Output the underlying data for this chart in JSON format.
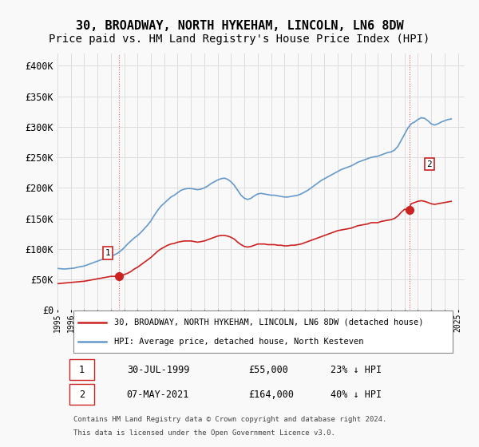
{
  "title": "30, BROADWAY, NORTH HYKEHAM, LINCOLN, LN6 8DW",
  "subtitle": "Price paid vs. HM Land Registry's House Price Index (HPI)",
  "title_fontsize": 11,
  "subtitle_fontsize": 10,
  "ylabel_ticks": [
    "£0",
    "£50K",
    "£100K",
    "£150K",
    "£200K",
    "£250K",
    "£300K",
    "£350K",
    "£400K"
  ],
  "ytick_values": [
    0,
    50000,
    100000,
    150000,
    200000,
    250000,
    300000,
    350000,
    400000
  ],
  "ylim": [
    0,
    420000
  ],
  "xlim_start": 1995.0,
  "xlim_end": 2025.5,
  "background_color": "#f9f9f9",
  "plot_bg_color": "#f9f9f9",
  "grid_color": "#dddddd",
  "hpi_color": "#6699cc",
  "price_color": "#cc2222",
  "marker1_year": 1999.58,
  "marker1_price": 55000,
  "marker2_year": 2021.35,
  "marker2_price": 164000,
  "legend_label1": "30, BROADWAY, NORTH HYKEHAM, LINCOLN, LN6 8DW (detached house)",
  "legend_label2": "HPI: Average price, detached house, North Kesteven",
  "annotation1_label": "1",
  "annotation2_label": "2",
  "footer1": "Contains HM Land Registry data © Crown copyright and database right 2024.",
  "footer2": "This data is licensed under the Open Government Licence v3.0.",
  "table_row1": [
    "1",
    "30-JUL-1999",
    "£55,000",
    "23% ↓ HPI"
  ],
  "table_row2": [
    "2",
    "07-MAY-2021",
    "£164,000",
    "40% ↓ HPI"
  ],
  "hpi_data_x": [
    1995.0,
    1995.25,
    1995.5,
    1995.75,
    1996.0,
    1996.25,
    1996.5,
    1996.75,
    1997.0,
    1997.25,
    1997.5,
    1997.75,
    1998.0,
    1998.25,
    1998.5,
    1998.75,
    1999.0,
    1999.25,
    1999.5,
    1999.75,
    2000.0,
    2000.25,
    2000.5,
    2000.75,
    2001.0,
    2001.25,
    2001.5,
    2001.75,
    2002.0,
    2002.25,
    2002.5,
    2002.75,
    2003.0,
    2003.25,
    2003.5,
    2003.75,
    2004.0,
    2004.25,
    2004.5,
    2004.75,
    2005.0,
    2005.25,
    2005.5,
    2005.75,
    2006.0,
    2006.25,
    2006.5,
    2006.75,
    2007.0,
    2007.25,
    2007.5,
    2007.75,
    2008.0,
    2008.25,
    2008.5,
    2008.75,
    2009.0,
    2009.25,
    2009.5,
    2009.75,
    2010.0,
    2010.25,
    2010.5,
    2010.75,
    2011.0,
    2011.25,
    2011.5,
    2011.75,
    2012.0,
    2012.25,
    2012.5,
    2012.75,
    2013.0,
    2013.25,
    2013.5,
    2013.75,
    2014.0,
    2014.25,
    2014.5,
    2014.75,
    2015.0,
    2015.25,
    2015.5,
    2015.75,
    2016.0,
    2016.25,
    2016.5,
    2016.75,
    2017.0,
    2017.25,
    2017.5,
    2017.75,
    2018.0,
    2018.25,
    2018.5,
    2018.75,
    2019.0,
    2019.25,
    2019.5,
    2019.75,
    2020.0,
    2020.25,
    2020.5,
    2020.75,
    2021.0,
    2021.25,
    2021.5,
    2021.75,
    2022.0,
    2022.25,
    2022.5,
    2022.75,
    2023.0,
    2023.25,
    2023.5,
    2023.75,
    2024.0,
    2024.25,
    2024.5
  ],
  "hpi_data_y": [
    68000,
    67500,
    67000,
    67500,
    68000,
    68500,
    70000,
    71000,
    72000,
    74000,
    76000,
    78000,
    80000,
    82000,
    84000,
    86000,
    88000,
    90000,
    93000,
    97000,
    102000,
    108000,
    113000,
    118000,
    122000,
    127000,
    133000,
    139000,
    146000,
    155000,
    163000,
    170000,
    175000,
    180000,
    185000,
    188000,
    192000,
    196000,
    198000,
    199000,
    199000,
    198000,
    197000,
    198000,
    200000,
    203000,
    207000,
    210000,
    213000,
    215000,
    216000,
    214000,
    210000,
    204000,
    196000,
    188000,
    183000,
    181000,
    183000,
    187000,
    190000,
    191000,
    190000,
    189000,
    188000,
    188000,
    187000,
    186000,
    185000,
    185000,
    186000,
    187000,
    188000,
    190000,
    193000,
    196000,
    200000,
    204000,
    208000,
    212000,
    215000,
    218000,
    221000,
    224000,
    227000,
    230000,
    232000,
    234000,
    236000,
    239000,
    242000,
    244000,
    246000,
    248000,
    250000,
    251000,
    252000,
    254000,
    256000,
    258000,
    259000,
    262000,
    268000,
    278000,
    288000,
    298000,
    305000,
    308000,
    312000,
    315000,
    314000,
    310000,
    305000,
    303000,
    305000,
    308000,
    310000,
    312000,
    313000
  ],
  "price_data_x": [
    1995.0,
    1995.25,
    1995.5,
    1995.75,
    1996.0,
    1996.25,
    1996.5,
    1996.75,
    1997.0,
    1997.25,
    1997.5,
    1997.75,
    1998.0,
    1998.25,
    1998.5,
    1998.75,
    1999.0,
    1999.25,
    1999.5,
    1999.75,
    2000.0,
    2000.25,
    2000.5,
    2000.75,
    2001.0,
    2001.25,
    2001.5,
    2001.75,
    2002.0,
    2002.25,
    2002.5,
    2002.75,
    2003.0,
    2003.25,
    2003.5,
    2003.75,
    2004.0,
    2004.25,
    2004.5,
    2004.75,
    2005.0,
    2005.25,
    2005.5,
    2005.75,
    2006.0,
    2006.25,
    2006.5,
    2006.75,
    2007.0,
    2007.25,
    2007.5,
    2007.75,
    2008.0,
    2008.25,
    2008.5,
    2008.75,
    2009.0,
    2009.25,
    2009.5,
    2009.75,
    2010.0,
    2010.25,
    2010.5,
    2010.75,
    2011.0,
    2011.25,
    2011.5,
    2011.75,
    2012.0,
    2012.25,
    2012.5,
    2012.75,
    2013.0,
    2013.25,
    2013.5,
    2013.75,
    2014.0,
    2014.25,
    2014.5,
    2014.75,
    2015.0,
    2015.25,
    2015.5,
    2015.75,
    2016.0,
    2016.25,
    2016.5,
    2016.75,
    2017.0,
    2017.25,
    2017.5,
    2017.75,
    2018.0,
    2018.25,
    2018.5,
    2018.75,
    2019.0,
    2019.25,
    2019.5,
    2019.75,
    2020.0,
    2020.25,
    2020.5,
    2020.75,
    2021.0,
    2021.25,
    2021.5,
    2021.75,
    2022.0,
    2022.25,
    2022.5,
    2022.75,
    2023.0,
    2023.25,
    2023.5,
    2023.75,
    2024.0,
    2024.25,
    2024.5
  ],
  "price_data_y": [
    43000,
    43500,
    44000,
    44500,
    45000,
    45500,
    46000,
    46500,
    47000,
    48000,
    49000,
    50000,
    51000,
    52000,
    53000,
    54000,
    55000,
    55000,
    55000,
    56000,
    58000,
    60000,
    63000,
    67000,
    70000,
    74000,
    78000,
    82000,
    86000,
    91000,
    96000,
    100000,
    103000,
    106000,
    108000,
    109000,
    111000,
    112000,
    113000,
    113000,
    113000,
    112000,
    111000,
    112000,
    113000,
    115000,
    117000,
    119000,
    121000,
    122000,
    122000,
    121000,
    119000,
    116000,
    111000,
    107000,
    104000,
    103000,
    104000,
    106000,
    108000,
    108000,
    108000,
    107000,
    107000,
    107000,
    106000,
    106000,
    105000,
    105000,
    106000,
    106000,
    107000,
    108000,
    110000,
    112000,
    114000,
    116000,
    118000,
    120000,
    122000,
    124000,
    126000,
    128000,
    130000,
    131000,
    132000,
    133000,
    134000,
    136000,
    138000,
    139000,
    140000,
    141000,
    143000,
    143000,
    143000,
    145000,
    146000,
    147000,
    148000,
    150000,
    154000,
    160000,
    165000,
    164000,
    174000,
    176000,
    178000,
    179000,
    178000,
    176000,
    174000,
    173000,
    174000,
    175000,
    176000,
    177000,
    178000
  ]
}
